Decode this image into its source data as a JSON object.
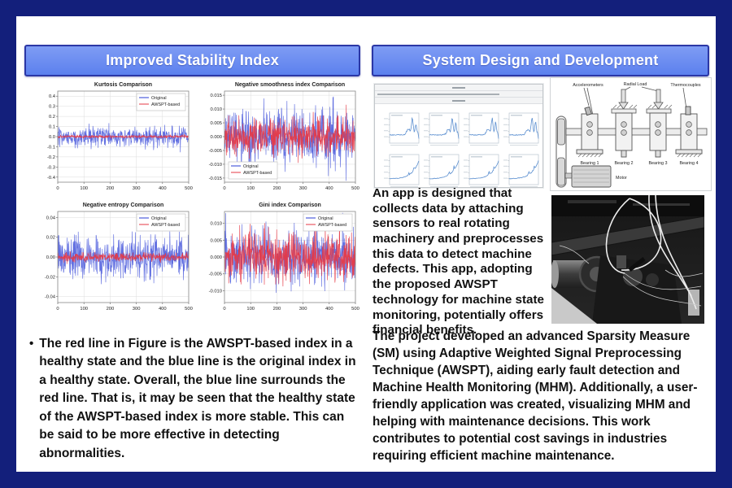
{
  "frame": {
    "border_color": "#131f7b",
    "inner_background": "#ffffff"
  },
  "left_panel": {
    "header": {
      "title": "Improved Stability Index",
      "fill_top": "#7f9cf4",
      "fill_bottom": "#5b80ee",
      "border_color": "#2b37a6",
      "text_color": "#ffffff"
    },
    "bullet_char": "•",
    "bullet_text": "The red line in Figure is the AWSPT-based index in a healthy state and the blue line is the original index in a healthy state. Overall, the blue line surrounds the red line. That is, it may be seen that the healthy state of the AWSPT-based index is more stable. This can be said to be more effective in detecting abnormalities."
  },
  "right_panel": {
    "header": {
      "title": "System Design and Development"
    },
    "app_note": "An app is designed that collects data by attaching sensors to real rotating machinery and preprocesses this data to detect machine defects. This app, adopting the proposed AWSPT technology for machine state monitoring, potentially offers financial benefits.",
    "summary": "The project developed an advanced Sparsity Measure (SM) using Adaptive Weighted Signal Preprocessing Technique (AWSPT), aiding early fault detection and Machine Health Monitoring (MHM). Additionally, a user-friendly application was created, visualizing MHM and helping with maintenance decisions. This work contributes to potential cost savings in industries requiring efficient machine maintenance.",
    "app_screenshot": {
      "rows": 2,
      "cols": 4,
      "line_color": "#5b8fd0",
      "alt": "Monitoring app window with eight small trend charts"
    },
    "diagram": {
      "alt": "Bearing test rig schematic",
      "labels": {
        "accelerometers": "Accelerometers",
        "radial_load": "Radial Load",
        "thermocouples": "Thermocouples",
        "bearing1": "Bearing 1",
        "bearing2": "Bearing 2",
        "bearing3": "Bearing 3",
        "bearing4": "Bearing 4",
        "motor": "Motor"
      }
    },
    "photo": {
      "alt": "Grayscale photo of bearing test rig with sensor cables"
    }
  },
  "chart_data": [
    {
      "type": "line",
      "title": "Kurtosis Comparison",
      "xlabel": "",
      "ylabel": "",
      "x_range": [
        0,
        500
      ],
      "xticks": [
        0,
        100,
        200,
        300,
        400,
        500
      ],
      "ylim": [
        -0.45,
        0.45
      ],
      "yticks": [
        0.4,
        0.3,
        0.2,
        0.1,
        0.0,
        -0.1,
        -0.2,
        -0.3,
        -0.4
      ],
      "ytick_decimals": 1,
      "grid": true,
      "legend_position": "upper-right",
      "series": [
        {
          "name": "Original",
          "color": "#2a3cd6",
          "n": 500,
          "mean": 0,
          "std": 0.048,
          "spike_prob": 0.02,
          "spike_amp": 0.12,
          "seed": 101
        },
        {
          "name": "AWSPT-based",
          "color": "#e63946",
          "n": 500,
          "mean": 0,
          "std": 0.007,
          "spike_prob": 0.01,
          "spike_amp": 0.02,
          "seed": 102
        }
      ]
    },
    {
      "type": "line",
      "title": "Negative smoothness index Comparison",
      "xlabel": "",
      "ylabel": "",
      "x_range": [
        0,
        500
      ],
      "xticks": [
        0,
        100,
        200,
        300,
        400,
        500
      ],
      "ylim": [
        -0.0165,
        0.0165
      ],
      "yticks": [
        0.015,
        0.01,
        0.005,
        0.0,
        -0.005,
        -0.01,
        -0.015
      ],
      "ytick_decimals": 3,
      "grid": true,
      "legend_position": "lower-left",
      "series": [
        {
          "name": "Original",
          "color": "#2a3cd6",
          "n": 500,
          "mean": 0,
          "std": 0.0048,
          "spike_prob": 0.05,
          "spike_amp": 0.008,
          "seed": 201
        },
        {
          "name": "AWSPT-based",
          "color": "#e63946",
          "n": 500,
          "mean": 0,
          "std": 0.0032,
          "spike_prob": 0.04,
          "spike_amp": 0.006,
          "seed": 202
        }
      ]
    },
    {
      "type": "line",
      "title": "Negative entropy Comparison",
      "xlabel": "",
      "ylabel": "",
      "x_range": [
        0,
        500
      ],
      "xticks": [
        0,
        100,
        200,
        300,
        400,
        500
      ],
      "ylim": [
        -0.046,
        0.046
      ],
      "yticks": [
        0.04,
        0.02,
        0.0,
        -0.02,
        -0.04
      ],
      "ytick_decimals": 2,
      "grid": true,
      "legend_position": "upper-right",
      "series": [
        {
          "name": "Original",
          "color": "#2a3cd6",
          "n": 500,
          "mean": 0,
          "std": 0.0105,
          "spike_prob": 0.04,
          "spike_amp": 0.018,
          "seed": 301
        },
        {
          "name": "AWSPT-based",
          "color": "#e63946",
          "n": 500,
          "mean": 0,
          "std": 0.0022,
          "spike_prob": 0.02,
          "spike_amp": 0.004,
          "seed": 302
        }
      ]
    },
    {
      "type": "line",
      "title": "Gini index Comparison",
      "xlabel": "",
      "ylabel": "",
      "x_range": [
        0,
        500
      ],
      "xticks": [
        0,
        100,
        200,
        300,
        400,
        500
      ],
      "ylim": [
        -0.0135,
        0.0135
      ],
      "yticks": [
        0.01,
        0.005,
        0.0,
        -0.005,
        -0.01
      ],
      "ytick_decimals": 3,
      "grid": true,
      "legend_position": "upper-right",
      "series": [
        {
          "name": "Original",
          "color": "#2a3cd6",
          "n": 500,
          "mean": 0,
          "std": 0.004,
          "spike_prob": 0.05,
          "spike_amp": 0.007,
          "seed": 401
        },
        {
          "name": "AWSPT-based",
          "color": "#e63946",
          "n": 500,
          "mean": 0,
          "std": 0.0033,
          "spike_prob": 0.04,
          "spike_amp": 0.006,
          "seed": 402
        }
      ]
    }
  ]
}
